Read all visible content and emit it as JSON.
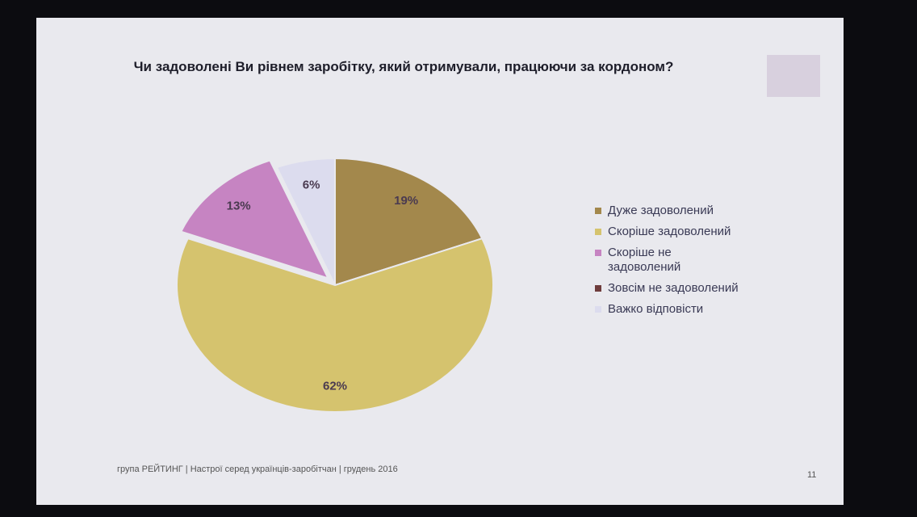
{
  "chart_data": {
    "type": "pie",
    "title": "Чи задоволені Ви рівнем заробітку, який отримували, працюючи за кордоном?",
    "categories": [
      "Дуже задоволений",
      "Скоріше задоволений",
      "Скоріше не задоволений",
      "Зовсім не задоволений",
      "Важко відповісти"
    ],
    "values": [
      19,
      62,
      13,
      0,
      6
    ],
    "value_labels": [
      "19%",
      "62%",
      "13%",
      null,
      "6%"
    ],
    "colors": [
      "#a3884c",
      "#d5c36e",
      "#c684c2",
      "#6e3c3c",
      "#dcdcee"
    ],
    "exploded": [
      false,
      false,
      true,
      false,
      false
    ],
    "legend": "right"
  },
  "footer": "група РЕЙТИНГ |  Настрої серед українців-заробітчан  |  грудень 2016",
  "page_number": "11"
}
